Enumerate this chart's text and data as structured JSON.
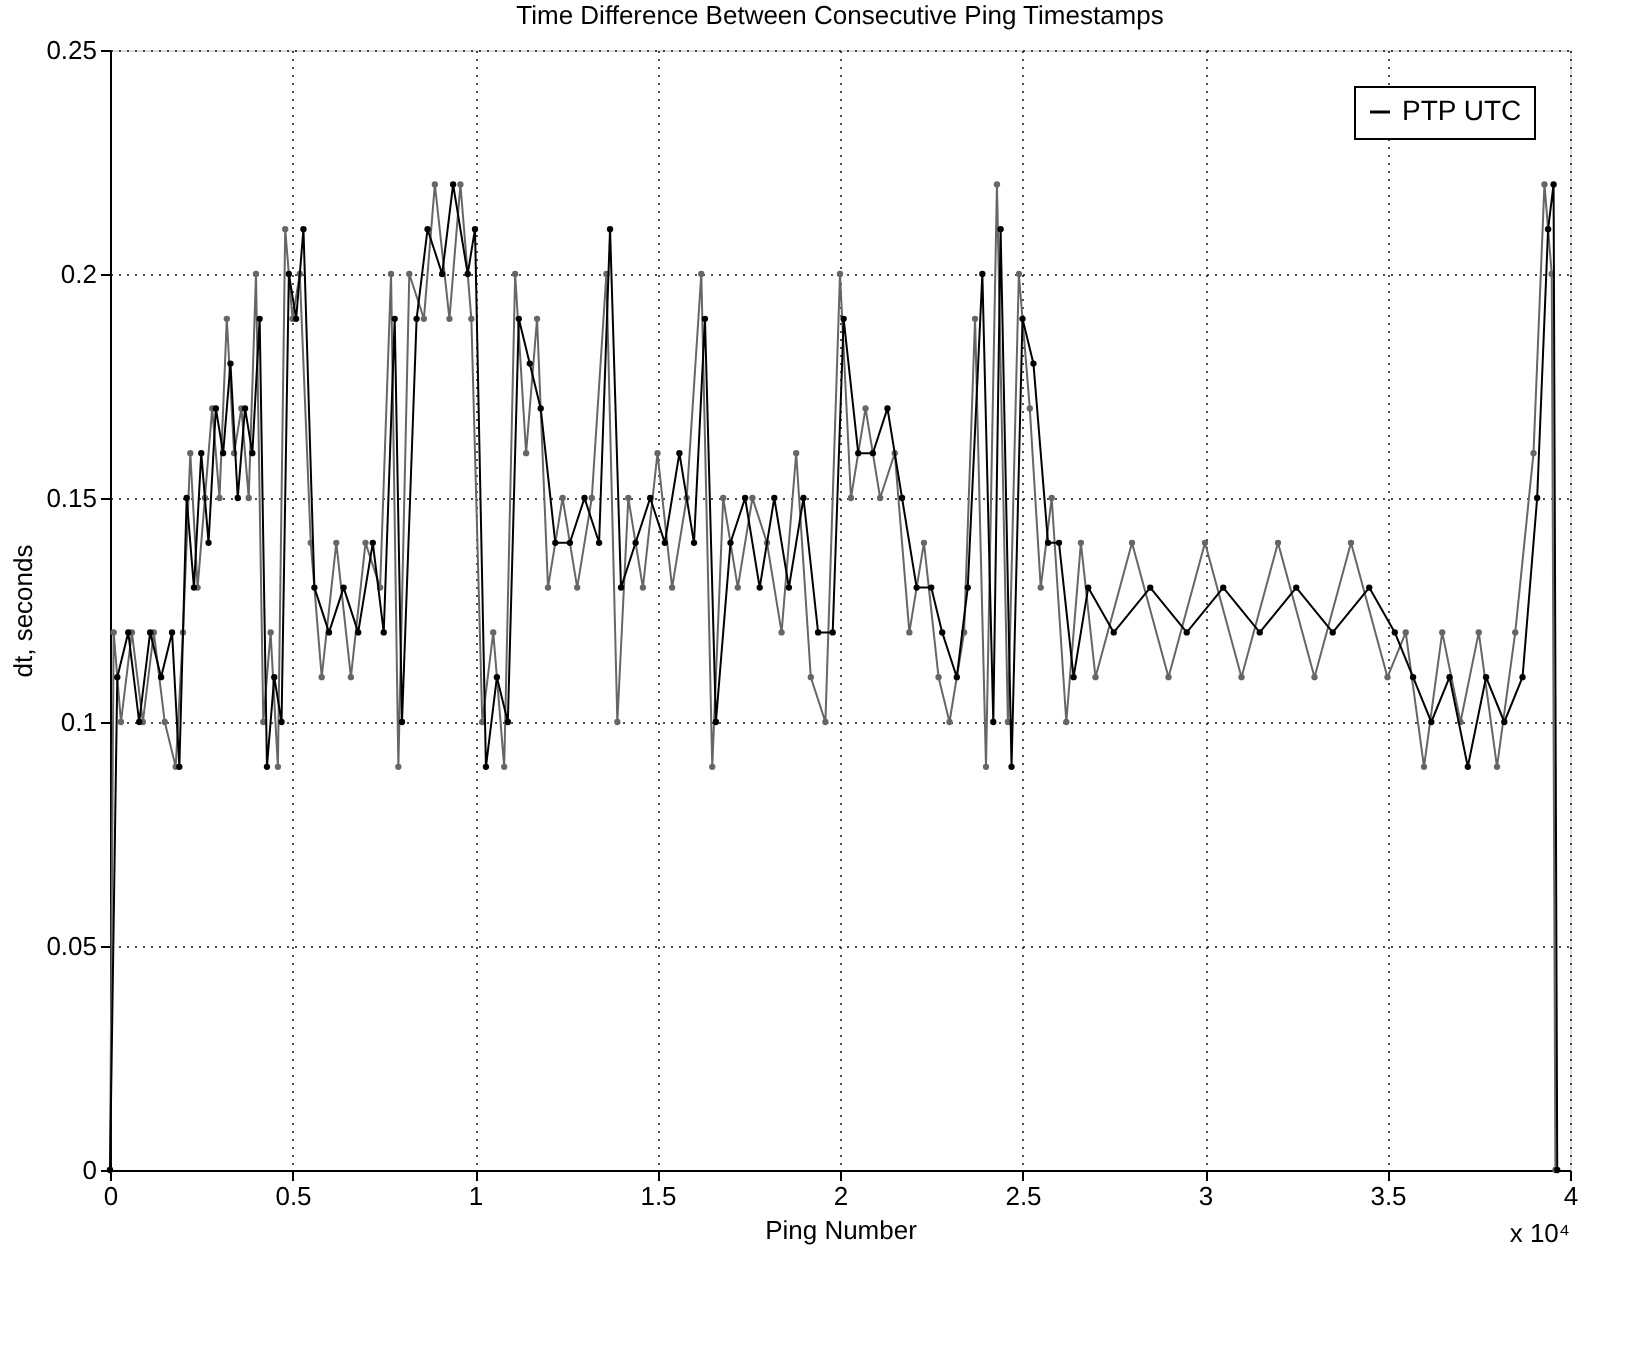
{
  "chart_data": {
    "type": "line",
    "title": "Time Difference Between Consecutive Ping Timestamps",
    "xlabel": "Ping Number",
    "ylabel": "dt, seconds",
    "annotations": [
      "x 10⁴"
    ],
    "xlim": [
      0,
      4
    ],
    "ylim": [
      0,
      0.25
    ],
    "xticks": [
      0,
      0.5,
      1,
      1.5,
      2,
      2.5,
      3,
      3.5,
      4
    ],
    "yticks": [
      0,
      0.05,
      0.1,
      0.15,
      0.2,
      0.25
    ],
    "grid": true,
    "legend": "top right",
    "marker": "circle",
    "line_style": "solid",
    "series": [
      {
        "color": "#666666",
        "x": [
          0,
          0.01,
          0.03,
          0.06,
          0.09,
          0.12,
          0.15,
          0.18,
          0.2,
          0.22,
          0.24,
          0.26,
          0.28,
          0.3,
          0.32,
          0.34,
          0.36,
          0.38,
          0.4,
          0.42,
          0.44,
          0.46,
          0.48,
          0.5,
          0.52,
          0.55,
          0.58,
          0.62,
          0.66,
          0.7,
          0.74,
          0.77,
          0.79,
          0.82,
          0.86,
          0.89,
          0.93,
          0.96,
          0.99,
          1.02,
          1.05,
          1.08,
          1.11,
          1.14,
          1.17,
          1.2,
          1.24,
          1.28,
          1.32,
          1.36,
          1.39,
          1.42,
          1.46,
          1.5,
          1.54,
          1.58,
          1.62,
          1.65,
          1.68,
          1.72,
          1.76,
          1.8,
          1.84,
          1.88,
          1.92,
          1.96,
          2,
          2.03,
          2.07,
          2.11,
          2.15,
          2.19,
          2.23,
          2.27,
          2.3,
          2.34,
          2.37,
          2.4,
          2.43,
          2.46,
          2.49,
          2.52,
          2.55,
          2.58,
          2.62,
          2.66,
          2.7,
          2.8,
          2.9,
          3,
          3.1,
          3.2,
          3.3,
          3.4,
          3.5,
          3.55,
          3.6,
          3.65,
          3.7,
          3.75,
          3.8,
          3.85,
          3.9,
          3.93,
          3.95,
          3.96
        ],
        "values": [
          0,
          0.12,
          0.1,
          0.12,
          0.1,
          0.12,
          0.1,
          0.09,
          0.12,
          0.16,
          0.13,
          0.15,
          0.17,
          0.15,
          0.19,
          0.16,
          0.17,
          0.15,
          0.2,
          0.1,
          0.12,
          0.09,
          0.21,
          0.19,
          0.2,
          0.14,
          0.11,
          0.14,
          0.11,
          0.14,
          0.13,
          0.2,
          0.09,
          0.2,
          0.19,
          0.22,
          0.19,
          0.22,
          0.19,
          0.1,
          0.12,
          0.09,
          0.2,
          0.16,
          0.19,
          0.13,
          0.15,
          0.13,
          0.15,
          0.2,
          0.1,
          0.15,
          0.13,
          0.16,
          0.13,
          0.15,
          0.2,
          0.09,
          0.15,
          0.13,
          0.15,
          0.14,
          0.12,
          0.16,
          0.11,
          0.1,
          0.2,
          0.15,
          0.17,
          0.15,
          0.16,
          0.12,
          0.14,
          0.11,
          0.1,
          0.12,
          0.19,
          0.09,
          0.22,
          0.1,
          0.2,
          0.17,
          0.13,
          0.15,
          0.1,
          0.14,
          0.11,
          0.14,
          0.11,
          0.14,
          0.11,
          0.14,
          0.11,
          0.14,
          0.11,
          0.12,
          0.09,
          0.12,
          0.1,
          0.12,
          0.09,
          0.12,
          0.16,
          0.22,
          0.2,
          0
        ]
      },
      {
        "name": "PTP UTC",
        "color": "#000000",
        "x": [
          0,
          0.02,
          0.05,
          0.08,
          0.11,
          0.14,
          0.17,
          0.19,
          0.21,
          0.23,
          0.25,
          0.27,
          0.29,
          0.31,
          0.33,
          0.35,
          0.37,
          0.39,
          0.41,
          0.43,
          0.45,
          0.47,
          0.49,
          0.51,
          0.53,
          0.56,
          0.6,
          0.64,
          0.68,
          0.72,
          0.75,
          0.78,
          0.8,
          0.84,
          0.87,
          0.91,
          0.94,
          0.98,
          1,
          1.03,
          1.06,
          1.09,
          1.12,
          1.15,
          1.18,
          1.22,
          1.26,
          1.3,
          1.34,
          1.37,
          1.4,
          1.44,
          1.48,
          1.52,
          1.56,
          1.6,
          1.63,
          1.66,
          1.7,
          1.74,
          1.78,
          1.82,
          1.86,
          1.9,
          1.94,
          1.98,
          2.01,
          2.05,
          2.09,
          2.13,
          2.17,
          2.21,
          2.25,
          2.28,
          2.32,
          2.35,
          2.39,
          2.42,
          2.44,
          2.47,
          2.5,
          2.53,
          2.57,
          2.6,
          2.64,
          2.68,
          2.75,
          2.85,
          2.95,
          3.05,
          3.15,
          3.25,
          3.35,
          3.45,
          3.52,
          3.57,
          3.62,
          3.67,
          3.72,
          3.77,
          3.82,
          3.87,
          3.91,
          3.94,
          3.955,
          3.965
        ],
        "values": [
          0,
          0.11,
          0.12,
          0.1,
          0.12,
          0.11,
          0.12,
          0.09,
          0.15,
          0.13,
          0.16,
          0.14,
          0.17,
          0.16,
          0.18,
          0.15,
          0.17,
          0.16,
          0.19,
          0.09,
          0.11,
          0.1,
          0.2,
          0.19,
          0.21,
          0.13,
          0.12,
          0.13,
          0.12,
          0.14,
          0.12,
          0.19,
          0.1,
          0.19,
          0.21,
          0.2,
          0.22,
          0.2,
          0.21,
          0.09,
          0.11,
          0.1,
          0.19,
          0.18,
          0.17,
          0.14,
          0.14,
          0.15,
          0.14,
          0.21,
          0.13,
          0.14,
          0.15,
          0.14,
          0.16,
          0.14,
          0.19,
          0.1,
          0.14,
          0.15,
          0.13,
          0.15,
          0.13,
          0.15,
          0.12,
          0.12,
          0.19,
          0.16,
          0.16,
          0.17,
          0.15,
          0.13,
          0.13,
          0.12,
          0.11,
          0.13,
          0.2,
          0.1,
          0.21,
          0.09,
          0.19,
          0.18,
          0.14,
          0.14,
          0.11,
          0.13,
          0.12,
          0.13,
          0.12,
          0.13,
          0.12,
          0.13,
          0.12,
          0.13,
          0.12,
          0.11,
          0.1,
          0.11,
          0.09,
          0.11,
          0.1,
          0.11,
          0.15,
          0.21,
          0.22,
          0
        ]
      }
    ]
  }
}
